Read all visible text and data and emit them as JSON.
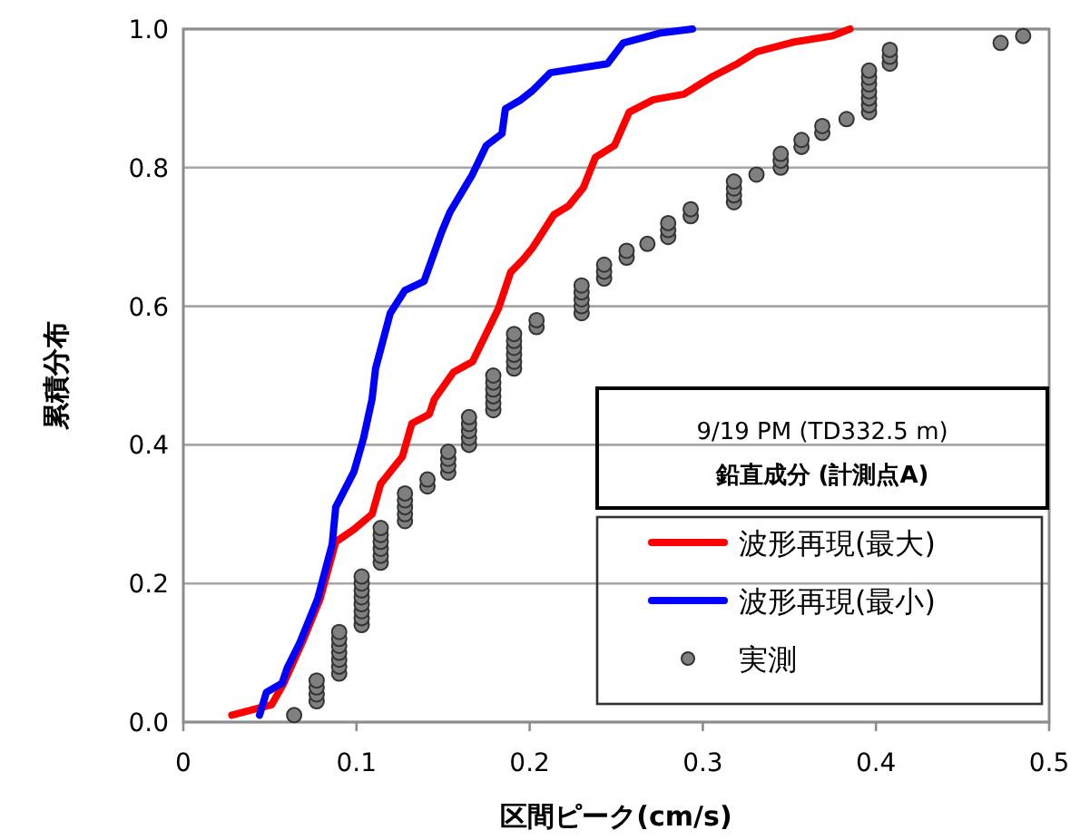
{
  "chart_data": {
    "type": "line",
    "title": "9/19 PM (TD332.5 m)",
    "subtitle": "鉛直成分 (計測点A)",
    "xlabel": "区間ピーク(cm/s)",
    "ylabel": "累積分布",
    "xlim": [
      0,
      0.5
    ],
    "ylim": [
      0,
      1
    ],
    "xticks": [
      0,
      0.1,
      0.2,
      0.3,
      0.4,
      0.5
    ],
    "yticks": [
      {
        "value": 0,
        "label": "0.0"
      },
      {
        "value": 0.2,
        "label": "0.2"
      },
      {
        "value": 0.4,
        "label": "0.4"
      },
      {
        "value": 0.6,
        "label": "0.6"
      },
      {
        "value": 0.8,
        "label": "0.8"
      },
      {
        "value": 1,
        "label": "1.0"
      }
    ],
    "grid": "y",
    "legend": "bottom right",
    "line_style": "solid",
    "series": [
      {
        "name": "波形再現(最大)",
        "color": "#ff0000",
        "x": [
          0.028,
          0.051,
          0.058,
          0.069,
          0.079,
          0.088,
          0.0985,
          0.109,
          0.114,
          0.1265,
          0.132,
          0.142,
          0.145,
          0.156,
          0.167,
          0.182,
          0.189,
          0.196,
          0.2016,
          0.205,
          0.214,
          0.2226,
          0.231,
          0.238,
          0.249,
          0.2575,
          0.2715,
          0.289,
          0.306,
          0.32,
          0.331,
          0.352,
          0.3745,
          0.385
        ],
        "values": [
          0.01,
          0.025,
          0.056,
          0.117,
          0.178,
          0.26,
          0.278,
          0.3,
          0.344,
          0.383,
          0.431,
          0.444,
          0.466,
          0.505,
          0.52,
          0.597,
          0.649,
          0.667,
          0.684,
          0.697,
          0.732,
          0.745,
          0.771,
          0.815,
          0.832,
          0.88,
          0.898,
          0.906,
          0.932,
          0.95,
          0.967,
          0.981,
          0.99,
          1.0
        ]
      },
      {
        "name": "波形再現(最小)",
        "color": "#0000ff",
        "x": [
          0.044,
          0.048,
          0.057,
          0.06,
          0.067,
          0.0776,
          0.086,
          0.088,
          0.0985,
          0.104,
          0.109,
          0.111,
          0.1195,
          0.128,
          0.139,
          0.149,
          0.154,
          0.1667,
          0.175,
          0.184,
          0.186,
          0.195,
          0.2016,
          0.212,
          0.245,
          0.254,
          0.275,
          0.294
        ],
        "values": [
          0.01,
          0.043,
          0.056,
          0.078,
          0.113,
          0.178,
          0.257,
          0.31,
          0.361,
          0.409,
          0.466,
          0.51,
          0.59,
          0.623,
          0.636,
          0.706,
          0.736,
          0.789,
          0.832,
          0.849,
          0.885,
          0.898,
          0.911,
          0.937,
          0.95,
          0.98,
          0.994,
          1.0
        ]
      },
      {
        "name": "実測",
        "color": "#808080",
        "type": "scatter",
        "marker": "circle",
        "x": [
          0.064,
          0.077,
          0.077,
          0.077,
          0.077,
          0.09,
          0.09,
          0.09,
          0.09,
          0.09,
          0.09,
          0.09,
          0.103,
          0.103,
          0.103,
          0.103,
          0.103,
          0.103,
          0.103,
          0.103,
          0.114,
          0.114,
          0.114,
          0.114,
          0.114,
          0.114,
          0.128,
          0.128,
          0.128,
          0.128,
          0.128,
          0.141,
          0.141,
          0.153,
          0.153,
          0.153,
          0.153,
          0.165,
          0.165,
          0.165,
          0.165,
          0.165,
          0.179,
          0.179,
          0.179,
          0.179,
          0.179,
          0.179,
          0.191,
          0.191,
          0.191,
          0.191,
          0.191,
          0.191,
          0.204,
          0.204,
          0.23,
          0.23,
          0.23,
          0.23,
          0.23,
          0.243,
          0.243,
          0.243,
          0.256,
          0.256,
          0.268,
          0.28,
          0.28,
          0.28,
          0.293,
          0.293,
          0.318,
          0.318,
          0.318,
          0.318,
          0.331,
          0.345,
          0.345,
          0.345,
          0.357,
          0.357,
          0.369,
          0.369,
          0.383,
          0.396,
          0.396,
          0.396,
          0.396,
          0.396,
          0.396,
          0.396,
          0.408,
          0.408,
          0.408,
          0.472,
          0.485
        ],
        "values": [
          0.01,
          0.03,
          0.04,
          0.05,
          0.06,
          0.07,
          0.08,
          0.09,
          0.1,
          0.11,
          0.12,
          0.13,
          0.14,
          0.15,
          0.16,
          0.17,
          0.18,
          0.19,
          0.2,
          0.21,
          0.23,
          0.24,
          0.25,
          0.26,
          0.27,
          0.28,
          0.29,
          0.3,
          0.31,
          0.32,
          0.33,
          0.34,
          0.35,
          0.36,
          0.37,
          0.38,
          0.39,
          0.4,
          0.41,
          0.42,
          0.43,
          0.44,
          0.45,
          0.46,
          0.47,
          0.48,
          0.49,
          0.5,
          0.51,
          0.52,
          0.53,
          0.54,
          0.55,
          0.56,
          0.57,
          0.58,
          0.59,
          0.6,
          0.61,
          0.62,
          0.63,
          0.64,
          0.65,
          0.66,
          0.67,
          0.68,
          0.69,
          0.7,
          0.71,
          0.72,
          0.73,
          0.74,
          0.75,
          0.76,
          0.77,
          0.78,
          0.79,
          0.8,
          0.81,
          0.82,
          0.83,
          0.84,
          0.85,
          0.86,
          0.87,
          0.88,
          0.89,
          0.9,
          0.91,
          0.92,
          0.93,
          0.94,
          0.95,
          0.96,
          0.97,
          0.98,
          0.99
        ]
      }
    ]
  }
}
